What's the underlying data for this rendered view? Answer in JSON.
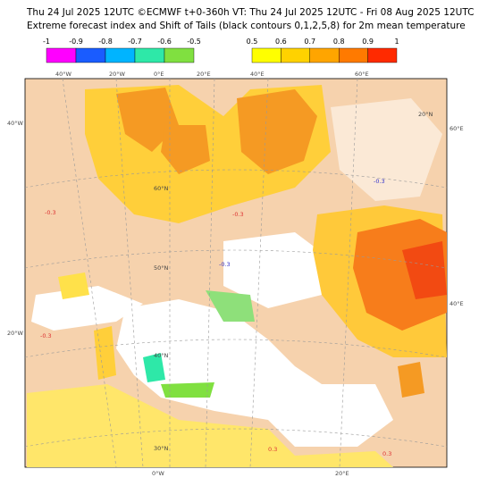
{
  "header": {
    "line1": "Thu 24 Jul 2025 12UTC ©ECMWF t+0-360h  VT: Thu 24 Jul 2025 12UTC - Fri 08 Aug 2025 12UTC",
    "line2": "Extreme forecast index and Shift of Tails (black contours 0,1,2,5,8) for 2m mean temperature"
  },
  "legend_cold": {
    "ticks": [
      "-1",
      "-0.9",
      "-0.8",
      "-0.7",
      "-0.6",
      "-0.5"
    ],
    "colors": [
      "#ff00ff",
      "#1a5cff",
      "#00b4ff",
      "#2ee8a8",
      "#80e040"
    ]
  },
  "legend_warm": {
    "ticks": [
      "0.5",
      "0.6",
      "0.7",
      "0.8",
      "0.9",
      "1"
    ],
    "colors": [
      "#ffff00",
      "#ffd200",
      "#ffa500",
      "#ff7a00",
      "#ff2a00"
    ]
  },
  "map": {
    "labels": [
      "40°W",
      "20°W",
      "0°E",
      "20°E",
      "40°E",
      "60°E",
      "40°W",
      "20°W",
      "60°E",
      "40°E",
      "60°N",
      "50°N",
      "40°N",
      "30°N",
      "20°N",
      "0°W",
      "20°E",
      "-0.3",
      "-0.3",
      "-0.3",
      "-0.3",
      "-0.3",
      "0.3",
      "0.3"
    ]
  }
}
